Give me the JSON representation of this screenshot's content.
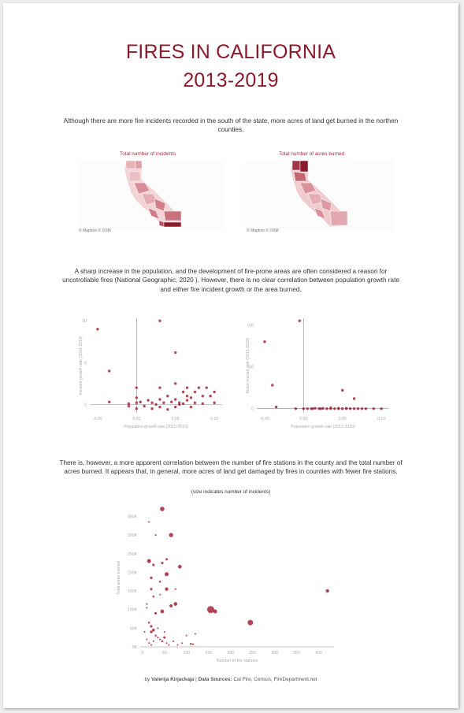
{
  "title_line1": "FIRES IN CALIFORNIA",
  "title_line2": "2013-2019",
  "para1": "Although there are more fire incidents recorded in the south of the state, more acres of land get burned in the northen counties.",
  "maps": {
    "left_label": "Total number of incidents",
    "right_label": "Total number of acres burned",
    "credit": "© Mapbox © OSM"
  },
  "para2": "A sharp increase in the population, and the development of fire-prone areas are often considered a reason for uncotrollable fires (National Geographic, 2020 ). However, there is no clear correlation between population growth rate and either fire incident growth or the area burned.",
  "para3": "There is, however, a more apparent correlation between the number of fire stations in the county and the total number of acres burned. It appears that, in general, more acres of land get damaged by fires in counties with fewer fire stations.",
  "size_note": "(size indicates number of incidents)",
  "footer": {
    "by": "by ",
    "author": "Valerija Kirjackaja",
    "sep": " | ",
    "sources_label": "Data Sources:",
    "sources": " Cal Fire, Census, FireDepartment.net"
  },
  "colors": {
    "accent": "#8b1a2b",
    "marker": "#a83245"
  },
  "chart_data": [
    {
      "type": "scatter",
      "xlabel": "Population growth rate (2013-2019)",
      "ylabel": "Incident growth rate (2013-2019)",
      "xticks": [
        "-0.05",
        "0.00",
        "0.05",
        "0.10"
      ],
      "yticks": [
        "0",
        "5",
        "10"
      ],
      "xlim": [
        -0.06,
        0.11
      ],
      "ylim": [
        -1,
        10.3
      ],
      "points": [
        [
          -0.05,
          9
        ],
        [
          -0.035,
          4
        ],
        [
          -0.035,
          0.3
        ],
        [
          -0.01,
          0.1
        ],
        [
          -0.01,
          -0.2
        ],
        [
          0.0,
          2
        ],
        [
          0.0,
          0.8
        ],
        [
          0.0,
          0.2
        ],
        [
          0.0,
          -0.5
        ],
        [
          0.005,
          0.3
        ],
        [
          0.01,
          -0.2
        ],
        [
          0.015,
          0.5
        ],
        [
          0.02,
          0.2
        ],
        [
          0.02,
          -0.5
        ],
        [
          0.025,
          0.0
        ],
        [
          0.03,
          2
        ],
        [
          0.03,
          0.6
        ],
        [
          0.03,
          -0.3
        ],
        [
          0.035,
          0.2
        ],
        [
          0.04,
          1
        ],
        [
          0.04,
          -0.6
        ],
        [
          0.045,
          0.3
        ],
        [
          0.05,
          2.5
        ],
        [
          0.05,
          0.6
        ],
        [
          0.05,
          -0.3
        ],
        [
          0.055,
          0.2
        ],
        [
          0.03,
          10
        ],
        [
          0.05,
          6.2
        ],
        [
          0.06,
          1.5
        ],
        [
          0.06,
          0.1
        ],
        [
          0.065,
          1.0
        ],
        [
          0.065,
          2.0
        ],
        [
          0.07,
          0.8
        ],
        [
          0.07,
          -0.3
        ],
        [
          0.075,
          1.5
        ],
        [
          0.075,
          0.2
        ],
        [
          0.08,
          2
        ],
        [
          0.085,
          1.0
        ],
        [
          0.085,
          0.1
        ],
        [
          0.09,
          2
        ],
        [
          0.095,
          1.0
        ],
        [
          0.1,
          1.5
        ],
        [
          0.1,
          0.2
        ],
        [
          0.055,
          0.0
        ],
        [
          0.065,
          0.5
        ]
      ]
    },
    {
      "type": "scatter",
      "xlabel": "Population growth rate (2013-2019)",
      "ylabel": "Acres burned rate (2013-2019)",
      "xticks": [
        "-0.05",
        "0.00",
        "0.05",
        "0.10"
      ],
      "yticks": [
        "0",
        "50",
        "100"
      ],
      "xlim": [
        -0.06,
        0.11
      ],
      "ylim": [
        -5,
        108
      ],
      "points": [
        [
          -0.05,
          80
        ],
        [
          -0.04,
          28
        ],
        [
          -0.035,
          2
        ],
        [
          -0.01,
          0
        ],
        [
          -0.005,
          105
        ],
        [
          0.0,
          0
        ],
        [
          0.005,
          0
        ],
        [
          0.01,
          0
        ],
        [
          0.012,
          0
        ],
        [
          0.015,
          0.5
        ],
        [
          0.02,
          0
        ],
        [
          0.022,
          0
        ],
        [
          0.025,
          0.3
        ],
        [
          0.03,
          0
        ],
        [
          0.035,
          0
        ],
        [
          0.04,
          0
        ],
        [
          0.045,
          0.5
        ],
        [
          0.05,
          22
        ],
        [
          0.05,
          0
        ],
        [
          0.055,
          0
        ],
        [
          0.06,
          0
        ],
        [
          0.065,
          12
        ],
        [
          0.065,
          0
        ],
        [
          0.07,
          0
        ],
        [
          0.075,
          0
        ],
        [
          0.08,
          0
        ],
        [
          0.09,
          0
        ],
        [
          0.1,
          0
        ],
        [
          0.035,
          1
        ],
        [
          0.045,
          0
        ],
        [
          0.055,
          0.5
        ]
      ]
    },
    {
      "type": "scatter",
      "xlabel": "Number of fire stations",
      "ylabel": "Total acres burned",
      "xticks": [
        "0",
        "50",
        "100",
        "150",
        "200",
        "250",
        "300",
        "350",
        "400"
      ],
      "yticks": [
        "0K",
        "50K",
        "100K",
        "150K",
        "200K",
        "250K",
        "300K",
        "350K"
      ],
      "xlim": [
        -5,
        435
      ],
      "ylim": [
        0,
        370000
      ],
      "points": [
        [
          45,
          370000,
          1000
        ],
        [
          15,
          335000,
          80
        ],
        [
          65,
          300000,
          900
        ],
        [
          30,
          300000,
          150
        ],
        [
          15,
          230000,
          800
        ],
        [
          25,
          220000,
          300
        ],
        [
          55,
          235000,
          250
        ],
        [
          85,
          215000,
          700
        ],
        [
          45,
          225000,
          300
        ],
        [
          55,
          195000,
          800
        ],
        [
          20,
          185000,
          350
        ],
        [
          40,
          175000,
          200
        ],
        [
          20,
          155000,
          300
        ],
        [
          55,
          155000,
          600
        ],
        [
          75,
          155000,
          150
        ],
        [
          40,
          140000,
          100
        ],
        [
          25,
          135000,
          200
        ],
        [
          75,
          115000,
          700
        ],
        [
          65,
          110000,
          500
        ],
        [
          10,
          105000,
          100
        ],
        [
          30,
          90000,
          300
        ],
        [
          45,
          95000,
          700
        ],
        [
          155,
          100000,
          2500
        ],
        [
          165,
          95000,
          800
        ],
        [
          245,
          65000,
          1500
        ],
        [
          420,
          150000,
          600
        ],
        [
          10,
          115000,
          80
        ],
        [
          15,
          65000,
          200
        ],
        [
          20,
          55000,
          300
        ],
        [
          25,
          45000,
          400
        ],
        [
          20,
          40000,
          350
        ],
        [
          30,
          30000,
          200
        ],
        [
          35,
          25000,
          100
        ],
        [
          40,
          20000,
          150
        ],
        [
          45,
          15000,
          200
        ],
        [
          50,
          25000,
          300
        ],
        [
          55,
          10000,
          100
        ],
        [
          60,
          5000,
          80
        ],
        [
          70,
          15000,
          100
        ],
        [
          80,
          5000,
          100
        ],
        [
          90,
          10000,
          80
        ],
        [
          110,
          8000,
          200
        ],
        [
          115,
          7000,
          150
        ],
        [
          120,
          35000,
          80
        ],
        [
          5,
          40000,
          100
        ],
        [
          10,
          20000,
          80
        ],
        [
          15,
          10000,
          60
        ],
        [
          20,
          5000,
          60
        ],
        [
          25,
          15000,
          80
        ],
        [
          100,
          30000,
          80
        ],
        [
          35,
          50000,
          120
        ],
        [
          50,
          40000,
          80
        ]
      ]
    }
  ]
}
